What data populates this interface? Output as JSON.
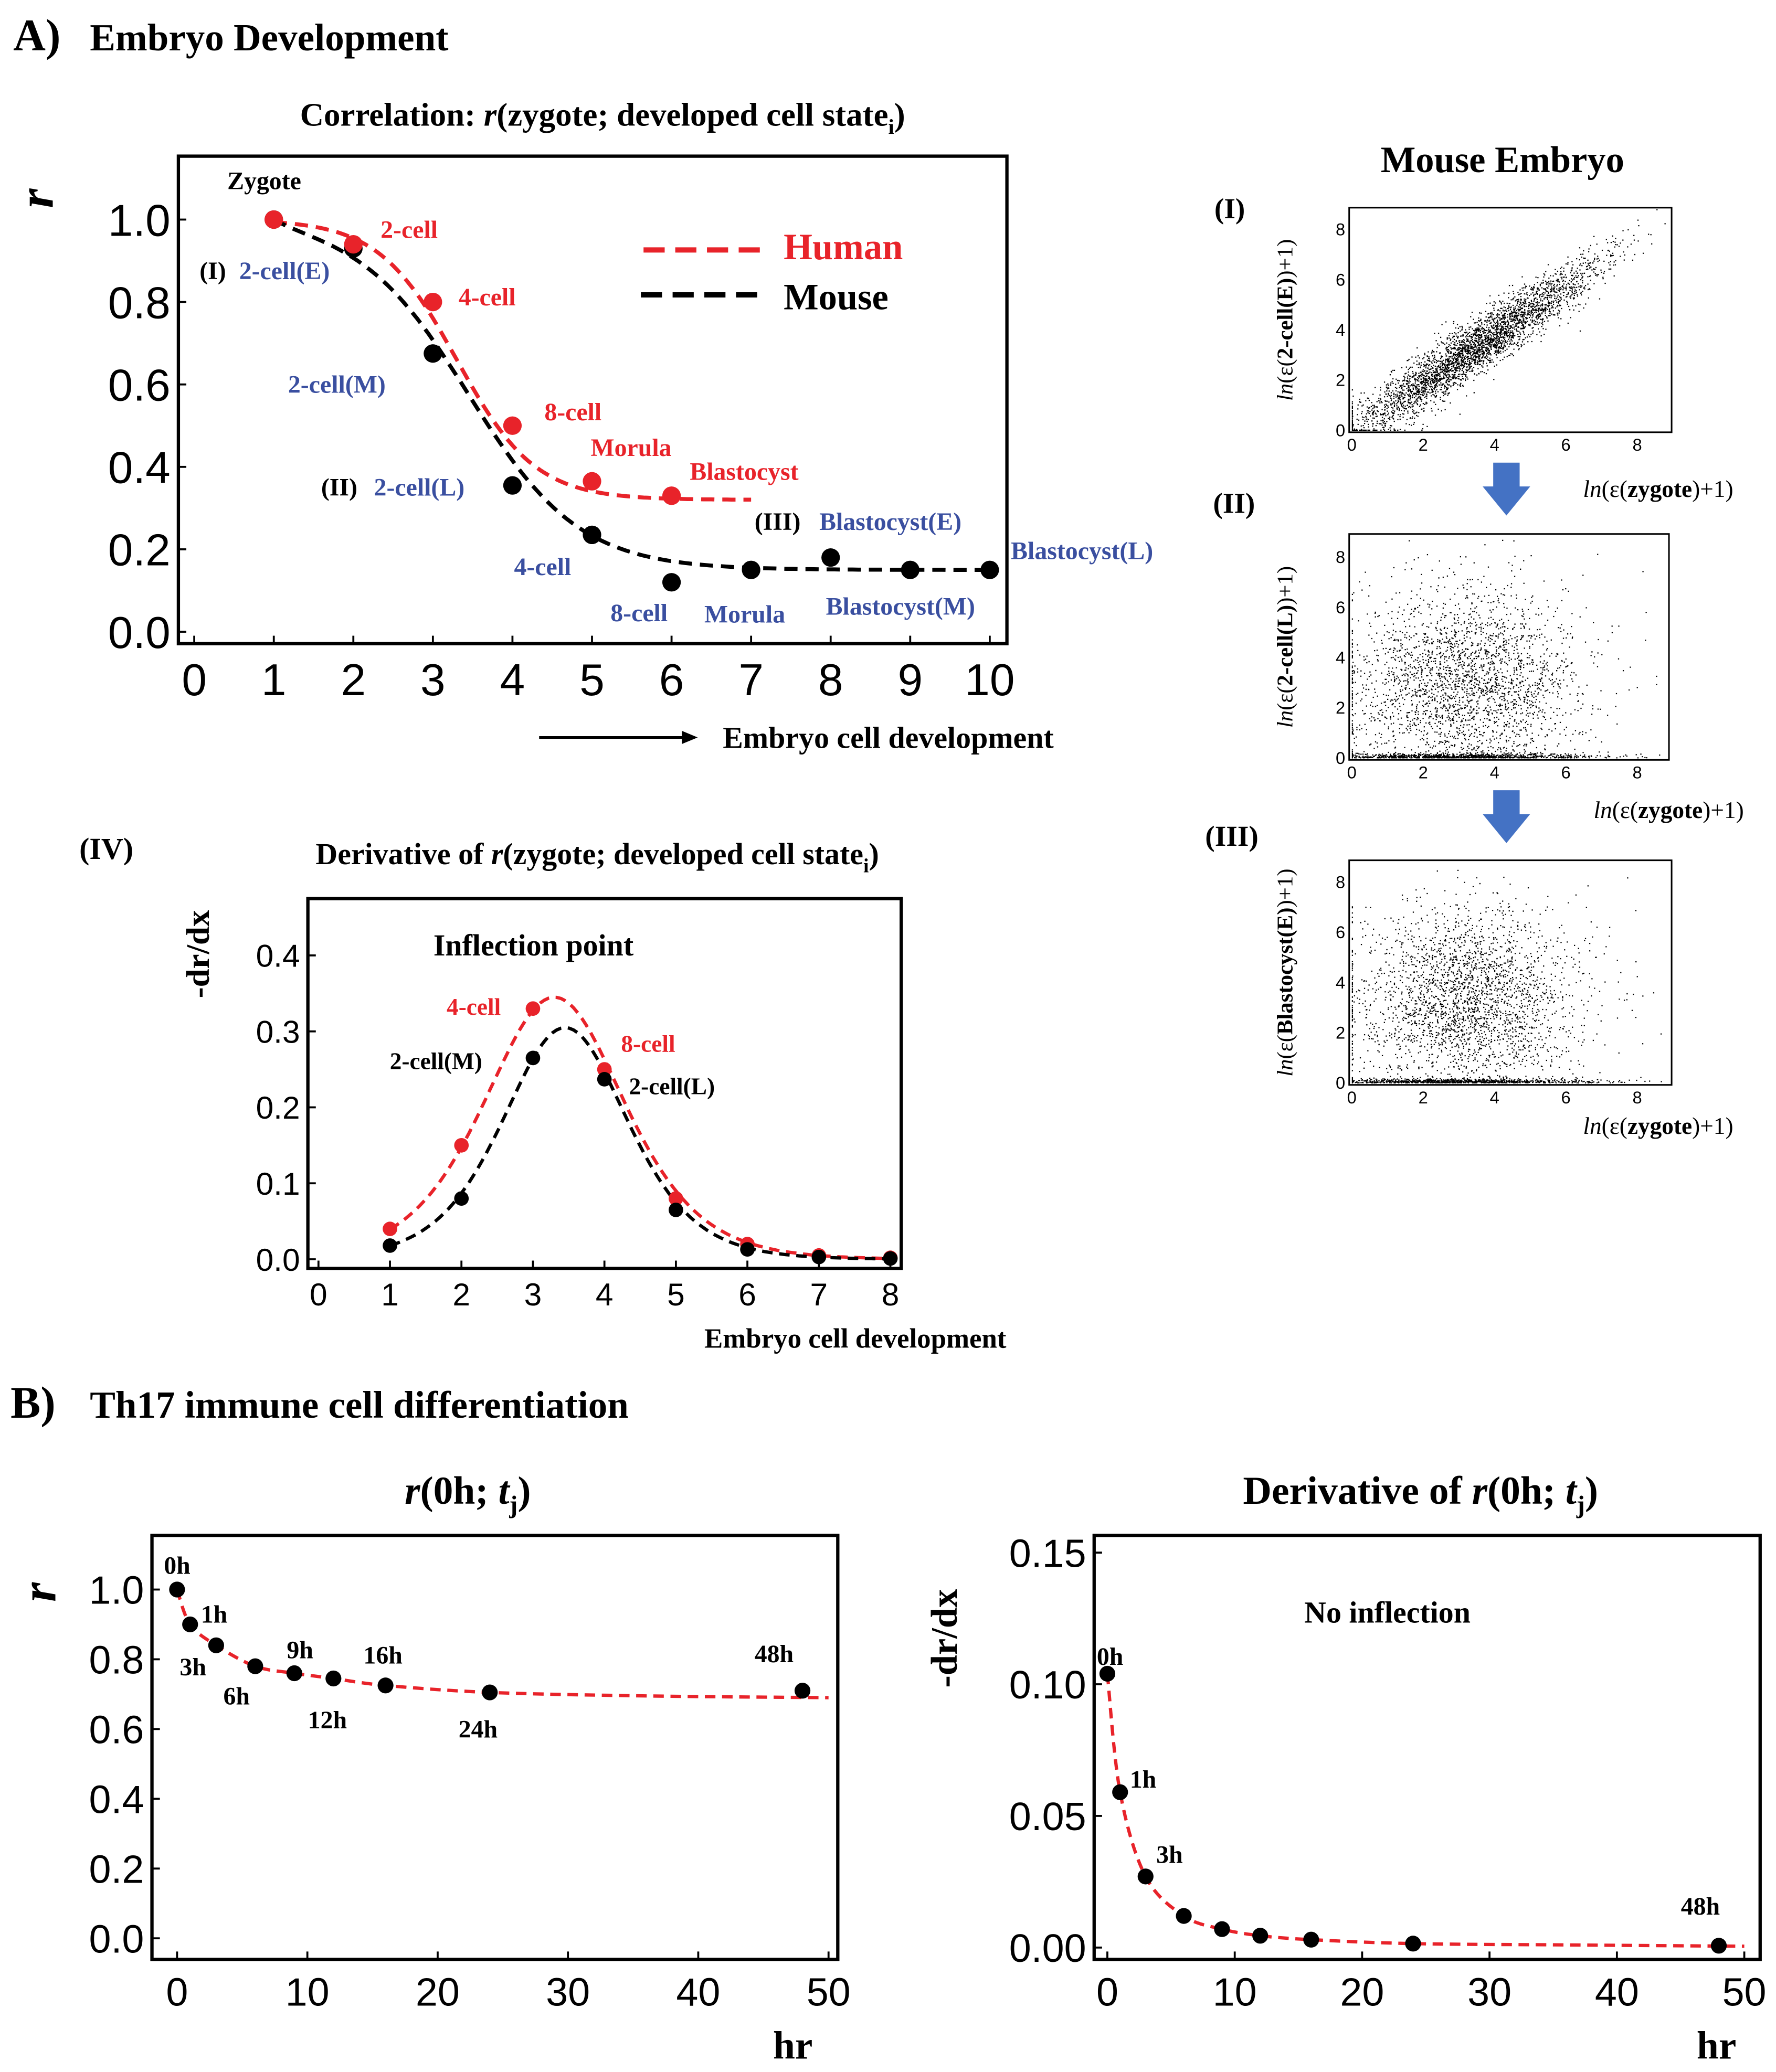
{
  "panel_a": {
    "label": "A)",
    "title": "Embryo Development"
  },
  "panel_b": {
    "label": "B)",
    "title": "Th17 immune cell differentiation"
  },
  "colors": {
    "human": "#e8232a",
    "mouse": "#000000",
    "annotation_blue": "#3a4fa0",
    "arrow": "#4472c4"
  },
  "chart_data": [
    {
      "id": "correlation",
      "type": "line",
      "title": {
        "pre": "Correlation: ",
        "r": "r",
        "mid": "(zygote; developed cell state",
        "sub": "i",
        "post": ")"
      },
      "ylabel": "r",
      "xlabel": "Embryo cell development",
      "xlim": [
        0,
        10
      ],
      "ylim": [
        0,
        1.05
      ],
      "xticks": [
        0,
        1,
        2,
        3,
        4,
        5,
        6,
        7,
        8,
        9,
        10
      ],
      "xtick_labels": [
        "0",
        "1",
        "2",
        "3",
        "4",
        "5",
        "6",
        "7",
        "8",
        "9",
        "10"
      ],
      "yticks": [
        0,
        0.2,
        0.4,
        0.6,
        0.8,
        1.0
      ],
      "ytick_labels": [
        "0.0",
        "0.2",
        "0.4",
        "0.6",
        "0.8",
        "1.0"
      ],
      "legend_position": "top-right",
      "legend": [
        "Human",
        "Mouse"
      ],
      "series": [
        {
          "name": "Human",
          "color": "#e8232a",
          "x": [
            1,
            2,
            3,
            4,
            5,
            6
          ],
          "y": [
            1.0,
            0.94,
            0.8,
            0.5,
            0.365,
            0.33
          ],
          "labels": [
            "",
            "2-cell",
            "4-cell",
            "8-cell",
            "Morula",
            "Blastocyst"
          ]
        },
        {
          "name": "Mouse",
          "color": "#000000",
          "x": [
            1,
            2,
            3,
            4,
            5,
            6,
            7,
            8,
            9,
            10
          ],
          "y": [
            1.0,
            0.93,
            0.675,
            0.355,
            0.235,
            0.12,
            0.15,
            0.18,
            0.15,
            0.15
          ],
          "labels": [
            {
              "prefix": "",
              "text": "Zygote"
            },
            {
              "prefix": "(I)",
              "text": "2-cell(E)"
            },
            {
              "prefix": "",
              "text": "2-cell(M)"
            },
            {
              "prefix": "(II)",
              "text": "2-cell(L)"
            },
            {
              "prefix": "",
              "text": "4-cell"
            },
            {
              "prefix": "",
              "text": "8-cell"
            },
            {
              "prefix": "",
              "text": "Morula"
            },
            {
              "prefix": "(III)",
              "text": "Blastocyst(E)"
            },
            {
              "prefix": "",
              "text": "Blastocyst(M)"
            },
            {
              "prefix": "",
              "text": "Blastocyst(L)"
            }
          ]
        }
      ]
    },
    {
      "id": "derivative",
      "type": "line",
      "panel_label": "(IV)",
      "title": {
        "pre": "Derivative of ",
        "r": "r",
        "mid": "(zygote; developed cell state",
        "sub": "i",
        "post": ")"
      },
      "ylabel": "-dr/dx",
      "xlabel": "Embryo cell development",
      "annotation": "Inflection point",
      "xlim": [
        0,
        8
      ],
      "ylim": [
        0,
        0.45
      ],
      "xticks": [
        0,
        1,
        2,
        3,
        4,
        5,
        6,
        7,
        8
      ],
      "xtick_labels": [
        "0",
        "1",
        "2",
        "3",
        "4",
        "5",
        "6",
        "7",
        "8"
      ],
      "yticks": [
        0,
        0.1,
        0.2,
        0.3,
        0.4
      ],
      "ytick_labels": [
        "0.0",
        "0.1",
        "0.2",
        "0.3",
        "0.4"
      ],
      "series": [
        {
          "name": "Human",
          "color": "#e8232a",
          "x": [
            1,
            2,
            3,
            4,
            5,
            6,
            7,
            8
          ],
          "y": [
            0.04,
            0.15,
            0.33,
            0.25,
            0.08,
            0.02,
            0.005,
            0.002
          ],
          "labels": [
            "",
            "",
            "4-cell",
            "8-cell",
            "",
            "",
            "",
            ""
          ]
        },
        {
          "name": "Mouse",
          "color": "#000000",
          "x": [
            1,
            2,
            3,
            4,
            5,
            6,
            7,
            8
          ],
          "y": [
            0.018,
            0.08,
            0.265,
            0.237,
            0.065,
            0.013,
            0.003,
            0.001
          ],
          "labels": [
            "",
            "",
            "2-cell(M)",
            "2-cell(L)",
            "",
            "",
            "",
            ""
          ]
        }
      ]
    },
    {
      "id": "mouse-scatter",
      "type": "scatter",
      "title": "Mouse Embryo",
      "panels": [
        {
          "label": "(I)",
          "xlabel": {
            "pre": "ln",
            "mid": "(ε(",
            "bold": "zygote",
            "post": ")+1)"
          },
          "ylabel": {
            "pre": "ln",
            "mid": "(ε(",
            "bold": "2-cell(E)",
            "post": ")+1)"
          },
          "correlation": "high"
        },
        {
          "label": "(II)",
          "xlabel": {
            "pre": "ln",
            "mid": "(ε(",
            "bold": "zygote",
            "post": ")+1)"
          },
          "ylabel": {
            "pre": "ln",
            "mid": "(ε(",
            "bold": "2-cell(L)",
            "post": ")+1)"
          },
          "correlation": "low"
        },
        {
          "label": "(III)",
          "xlabel": {
            "pre": "ln",
            "mid": "(ε(",
            "bold": "zygote",
            "post": ")+1)"
          },
          "ylabel": {
            "pre": "ln",
            "mid": "(ε(",
            "bold": "Blastocyst(E)",
            "post": ")+1)"
          },
          "correlation": "low"
        }
      ],
      "xlim": [
        0,
        9
      ],
      "ylim": [
        0,
        9
      ],
      "xticks": [
        0,
        2,
        4,
        6,
        8
      ],
      "xtick_labels": [
        "0",
        "2",
        "4",
        "6",
        "8"
      ],
      "yticks": [
        0,
        2,
        4,
        6,
        8
      ],
      "ytick_labels": [
        "0",
        "2",
        "4",
        "6",
        "8"
      ]
    },
    {
      "id": "th17-correlation",
      "type": "line",
      "title": {
        "pre": "",
        "r": "r",
        "mid": "(0h; ",
        "t": "t",
        "sub": "j",
        "post": ")"
      },
      "ylabel": "r",
      "xlabel": "hr",
      "xlim": [
        0,
        50
      ],
      "ylim": [
        0,
        1.1
      ],
      "xticks": [
        0,
        10,
        20,
        30,
        40,
        50
      ],
      "xtick_labels": [
        "0",
        "10",
        "20",
        "30",
        "40",
        "50"
      ],
      "yticks": [
        0,
        0.2,
        0.4,
        0.6,
        0.8,
        1.0
      ],
      "ytick_labels": [
        "0.0",
        "0.2",
        "0.4",
        "0.6",
        "0.8",
        "1.0"
      ],
      "series": [
        {
          "name": "Th17",
          "color": "#000000",
          "x": [
            0,
            1,
            3,
            6,
            9,
            12,
            16,
            24,
            48
          ],
          "y": [
            1.0,
            0.9,
            0.84,
            0.78,
            0.76,
            0.745,
            0.725,
            0.705,
            0.71
          ],
          "labels": [
            "0h",
            "1h",
            "3h",
            "6h",
            "9h",
            "12h",
            "16h",
            "24h",
            "48h"
          ]
        }
      ]
    },
    {
      "id": "th17-derivative",
      "type": "line",
      "title": {
        "pre": "Derivative of ",
        "r": "r",
        "mid": "(0h; ",
        "t": "t",
        "sub": "j",
        "post": ")"
      },
      "ylabel": "-dr/dx",
      "xlabel": "hr",
      "annotation": "No inflection",
      "xlim": [
        0,
        50
      ],
      "ylim": [
        0,
        0.15
      ],
      "xticks": [
        0,
        10,
        20,
        30,
        40,
        50
      ],
      "xtick_labels": [
        "0",
        "10",
        "20",
        "30",
        "40",
        "50"
      ],
      "yticks": [
        0,
        0.05,
        0.1,
        0.15
      ],
      "ytick_labels": [
        "0.00",
        "0.05",
        "0.10",
        "0.15"
      ],
      "series": [
        {
          "name": "Th17",
          "color": "#000000",
          "x": [
            0,
            1,
            3,
            6,
            9,
            12,
            16,
            24,
            48
          ],
          "y": [
            0.104,
            0.059,
            0.027,
            0.012,
            0.007,
            0.0045,
            0.003,
            0.0015,
            0.0007
          ],
          "labels": [
            "0h",
            "1h",
            "3h",
            "",
            "",
            "",
            "",
            "",
            "48h"
          ]
        }
      ]
    }
  ]
}
